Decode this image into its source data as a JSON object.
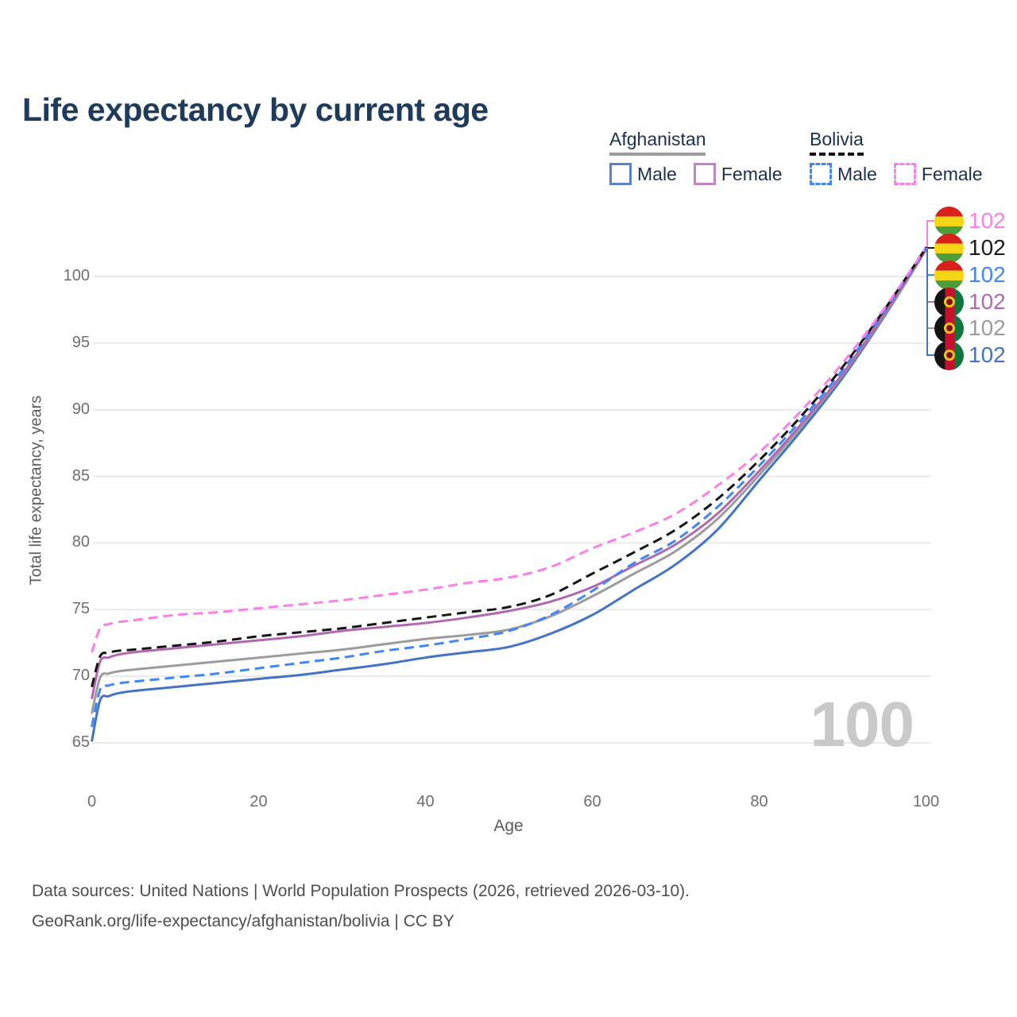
{
  "title": "Life expectancy by current age",
  "legend": {
    "groups": [
      {
        "country": "Afghanistan",
        "items": [
          {
            "label": "Male"
          },
          {
            "label": "Female"
          }
        ]
      },
      {
        "country": "Bolivia",
        "items": [
          {
            "label": "Male"
          },
          {
            "label": "Female"
          }
        ]
      }
    ]
  },
  "watermark": "100",
  "footer": {
    "line1": "Data sources: United Nations | World Population Prospects (2026, retrieved 2026-03-10).",
    "line2": "GeoRank.org/life-expectancy/afghanistan/bolivia | CC BY"
  },
  "chart_data": {
    "type": "line",
    "xlabel": "Age",
    "ylabel": "Total life expectancy, years",
    "xlim": [
      0,
      100
    ],
    "ylim": [
      65,
      103
    ],
    "xticks": [
      0,
      20,
      40,
      60,
      80,
      100
    ],
    "yticks": [
      65,
      70,
      75,
      80,
      85,
      90,
      95,
      100
    ],
    "grid": "horizontal-only",
    "legend_position": "top-right",
    "x": [
      0,
      1,
      2,
      3,
      5,
      10,
      15,
      20,
      25,
      30,
      35,
      40,
      45,
      50,
      55,
      60,
      65,
      70,
      75,
      80,
      85,
      90,
      95,
      100
    ],
    "series": [
      {
        "name": "Afghanistan Male",
        "color": "#4273c4",
        "dashed": false,
        "values": [
          65.1,
          68.2,
          68.5,
          68.7,
          68.9,
          69.2,
          69.5,
          69.8,
          70.1,
          70.5,
          70.9,
          71.4,
          71.8,
          72.2,
          73.2,
          74.6,
          76.5,
          78.4,
          81.0,
          84.7,
          88.4,
          92.4,
          97.0,
          102.0
        ]
      },
      {
        "name": "Afghanistan Both sexes",
        "color": "#9c9c9c",
        "dashed": false,
        "values": [
          67.2,
          69.9,
          70.2,
          70.35,
          70.5,
          70.8,
          71.1,
          71.4,
          71.7,
          72.0,
          72.4,
          72.8,
          73.1,
          73.5,
          74.5,
          76.0,
          77.7,
          79.4,
          81.8,
          85.1,
          88.7,
          92.6,
          97.1,
          102.0
        ]
      },
      {
        "name": "Afghanistan Female",
        "color": "#b168b1",
        "dashed": false,
        "values": [
          68.3,
          71.1,
          71.4,
          71.6,
          71.8,
          72.1,
          72.4,
          72.7,
          73.0,
          73.4,
          73.7,
          74.0,
          74.4,
          74.9,
          75.6,
          76.7,
          78.3,
          79.9,
          82.2,
          85.4,
          88.9,
          92.7,
          97.2,
          102.05
        ]
      },
      {
        "name": "Bolivia Male",
        "color": "#3f86f7",
        "dashed": true,
        "values": [
          66.2,
          69.0,
          69.3,
          69.45,
          69.6,
          69.9,
          70.2,
          70.6,
          71.0,
          71.4,
          71.9,
          72.3,
          72.8,
          73.4,
          74.6,
          76.4,
          78.5,
          80.2,
          82.7,
          85.8,
          89.2,
          93.0,
          97.4,
          102.1
        ]
      },
      {
        "name": "Bolivia Both sexes",
        "color": "#151515",
        "dashed": true,
        "values": [
          69.2,
          71.5,
          71.75,
          71.9,
          72.0,
          72.3,
          72.6,
          73.0,
          73.3,
          73.6,
          74.0,
          74.4,
          74.8,
          75.2,
          76.1,
          77.7,
          79.3,
          81.0,
          83.3,
          86.2,
          89.5,
          93.2,
          97.5,
          102.15
        ]
      },
      {
        "name": "Bolivia Female",
        "color": "#fb7ee9",
        "dashed": true,
        "values": [
          71.8,
          73.6,
          73.9,
          74.05,
          74.2,
          74.6,
          74.8,
          75.1,
          75.4,
          75.7,
          76.1,
          76.5,
          77.0,
          77.4,
          78.2,
          79.6,
          80.8,
          82.2,
          84.3,
          86.8,
          89.9,
          93.5,
          97.6,
          102.2
        ]
      }
    ]
  },
  "end_labels": [
    {
      "series_index": 5,
      "flag": "bolivia",
      "country": "Bolivia",
      "value": "102",
      "color": "#fb7ee9",
      "y": 278
    },
    {
      "series_index": 4,
      "flag": "bolivia",
      "country": "Bolivia",
      "value": "102",
      "color": "#1a1a1a",
      "y": 312
    },
    {
      "series_index": 3,
      "flag": "bolivia",
      "country": "Bolivia",
      "value": "102",
      "color": "#3f86f7",
      "y": 346
    },
    {
      "series_index": 2,
      "flag": "afghanistan",
      "country": "Afghanistan",
      "value": "102",
      "color": "#b168b1",
      "y": 380
    },
    {
      "series_index": 1,
      "flag": "afghanistan",
      "country": "Afghanistan",
      "value": "102",
      "color": "#9c9c9c",
      "y": 413
    },
    {
      "series_index": 0,
      "flag": "afghanistan",
      "country": "Afghanistan",
      "value": "102",
      "color": "#4273c4",
      "y": 447
    }
  ]
}
